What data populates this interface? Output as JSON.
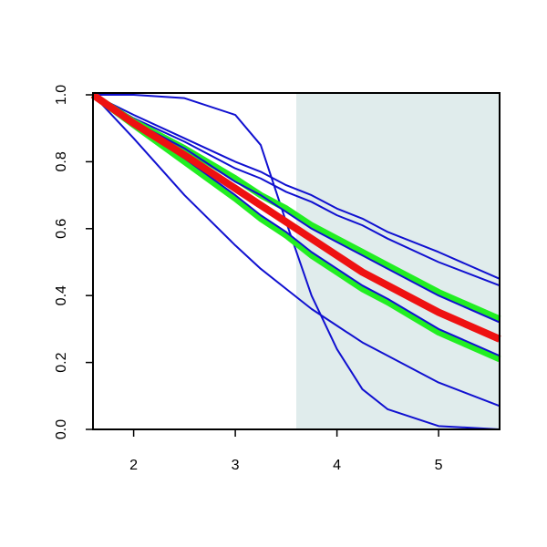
{
  "chart_data": {
    "type": "line",
    "x": [
      1.6,
      2.0,
      2.5,
      3.0,
      3.25,
      3.5,
      3.75,
      4.0,
      4.25,
      4.5,
      5.0,
      5.6
    ],
    "xlim": [
      1.6,
      5.6
    ],
    "xticks": [
      2,
      3,
      4,
      5
    ],
    "ylim": [
      0,
      1
    ],
    "yticks": [
      {
        "value": 0,
        "label": "0.0"
      },
      0.2,
      0.4,
      0.6,
      0.8,
      {
        "value": 1,
        "label": "1.0"
      }
    ],
    "shade": {
      "xlim": [
        3.6,
        5.6
      ],
      "color": "#e0ecec"
    },
    "series": [
      {
        "color": "#1010d0",
        "width": 2,
        "values": [
          1.0,
          1.0,
          0.99,
          0.94,
          0.85,
          0.62,
          0.4,
          0.24,
          0.12,
          0.06,
          0.01,
          0.0
        ]
      },
      {
        "color": "#1010d0",
        "width": 2,
        "values": [
          1.0,
          0.87,
          0.7,
          0.55,
          0.48,
          0.42,
          0.36,
          0.31,
          0.26,
          0.22,
          0.14,
          0.07
        ]
      },
      {
        "color": "#1010d0",
        "width": 2,
        "values": [
          1.0,
          0.94,
          0.87,
          0.8,
          0.77,
          0.73,
          0.7,
          0.66,
          0.63,
          0.59,
          0.53,
          0.45
        ]
      },
      {
        "color": "#1010d0",
        "width": 2,
        "values": [
          1.0,
          0.93,
          0.86,
          0.78,
          0.75,
          0.71,
          0.68,
          0.64,
          0.61,
          0.57,
          0.5,
          0.43
        ]
      },
      {
        "color": "#22ee22",
        "width": 7,
        "values": [
          1.0,
          0.92,
          0.84,
          0.75,
          0.7,
          0.66,
          0.61,
          0.57,
          0.53,
          0.49,
          0.41,
          0.33
        ]
      },
      {
        "color": "#22ee22",
        "width": 7,
        "values": [
          1.0,
          0.91,
          0.8,
          0.69,
          0.63,
          0.58,
          0.52,
          0.47,
          0.42,
          0.38,
          0.29,
          0.21
        ]
      },
      {
        "color": "#1010d0",
        "width": 2,
        "values": [
          1.0,
          0.92,
          0.84,
          0.74,
          0.7,
          0.65,
          0.6,
          0.56,
          0.52,
          0.48,
          0.4,
          0.32
        ]
      },
      {
        "color": "#1010d0",
        "width": 2,
        "values": [
          1.0,
          0.91,
          0.81,
          0.7,
          0.64,
          0.59,
          0.53,
          0.48,
          0.43,
          0.39,
          0.3,
          0.22
        ]
      },
      {
        "color": "#ee1111",
        "width": 8,
        "values": [
          1.0,
          0.915,
          0.82,
          0.72,
          0.67,
          0.62,
          0.57,
          0.52,
          0.47,
          0.43,
          0.35,
          0.27
        ]
      }
    ]
  }
}
